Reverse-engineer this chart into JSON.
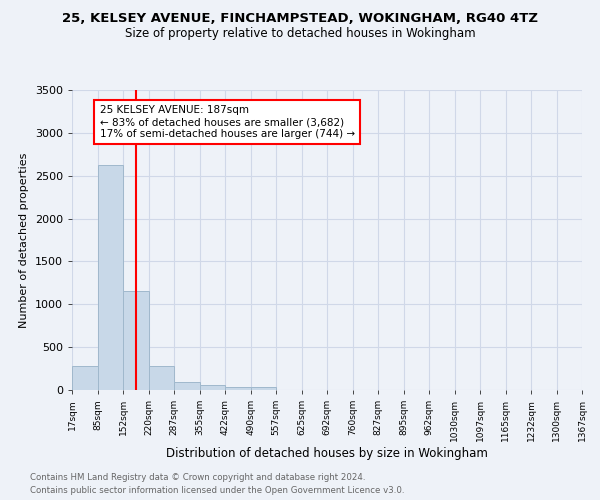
{
  "title1": "25, KELSEY AVENUE, FINCHAMPSTEAD, WOKINGHAM, RG40 4TZ",
  "title2": "Size of property relative to detached houses in Wokingham",
  "xlabel": "Distribution of detached houses by size in Wokingham",
  "ylabel": "Number of detached properties",
  "bin_labels": [
    "17sqm",
    "85sqm",
    "152sqm",
    "220sqm",
    "287sqm",
    "355sqm",
    "422sqm",
    "490sqm",
    "557sqm",
    "625sqm",
    "692sqm",
    "760sqm",
    "827sqm",
    "895sqm",
    "962sqm",
    "1030sqm",
    "1097sqm",
    "1165sqm",
    "1232sqm",
    "1300sqm",
    "1367sqm"
  ],
  "bin_edges": [
    17,
    85,
    152,
    220,
    287,
    355,
    422,
    490,
    557,
    625,
    692,
    760,
    827,
    895,
    962,
    1030,
    1097,
    1165,
    1232,
    1300,
    1367
  ],
  "bar_heights": [
    280,
    2630,
    1150,
    280,
    90,
    55,
    40,
    40,
    0,
    0,
    0,
    0,
    0,
    0,
    0,
    0,
    0,
    0,
    0,
    0
  ],
  "bar_color": "#c8d8e8",
  "bar_edge_color": "#a0b8cc",
  "grid_color": "#d0d8e8",
  "background_color": "#eef2f8",
  "red_line_x": 187,
  "annotation_text": "25 KELSEY AVENUE: 187sqm\n← 83% of detached houses are smaller (3,682)\n17% of semi-detached houses are larger (744) →",
  "ylim": [
    0,
    3500
  ],
  "yticks": [
    0,
    500,
    1000,
    1500,
    2000,
    2500,
    3000,
    3500
  ],
  "footnote_line1": "Contains HM Land Registry data © Crown copyright and database right 2024.",
  "footnote_line2": "Contains public sector information licensed under the Open Government Licence v3.0."
}
